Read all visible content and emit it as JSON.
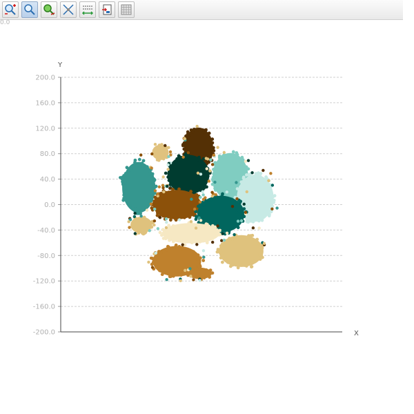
{
  "toolbar": {
    "buttons": [
      {
        "icon": "zoom-in-icon",
        "active": false
      },
      {
        "icon": "zoom-icon",
        "active": true
      },
      {
        "icon": "pan-icon",
        "active": false
      },
      {
        "icon": "select-icon",
        "active": false
      },
      {
        "icon": "axis-icon",
        "active": false
      },
      {
        "icon": "export-icon",
        "active": false
      },
      {
        "icon": "grid-icon",
        "active": false
      }
    ]
  },
  "status": {
    "text": "0.0"
  },
  "chart_data": {
    "type": "scatter",
    "xlabel": "X",
    "ylabel": "Y",
    "ylim": [
      -200,
      200
    ],
    "y_ticks": [
      "200.0",
      "160.0",
      "120.0",
      "80.0",
      "40.0",
      "0.0",
      "-40.0",
      "-80.0",
      "-120.0",
      "-160.0",
      "-200.0"
    ],
    "grid": true,
    "clusters": [
      {
        "color": "#543005",
        "cx": 3,
        "cy": 88,
        "rx": 23,
        "ry": 33
      },
      {
        "color": "#e0c27e",
        "cx": -57,
        "cy": 82,
        "rx": 13,
        "ry": 12
      },
      {
        "color": "#003c30",
        "cx": -13,
        "cy": 47,
        "rx": 33,
        "ry": 31
      },
      {
        "color": "#80cdc1",
        "cx": 53,
        "cy": 44,
        "rx": 28,
        "ry": 37
      },
      {
        "color": "#35978f",
        "cx": -91,
        "cy": 27,
        "rx": 26,
        "ry": 40
      },
      {
        "color": "#c7eae5",
        "cx": 92,
        "cy": 10,
        "rx": 29,
        "ry": 37
      },
      {
        "color": "#8c510a",
        "cx": -31,
        "cy": 0,
        "rx": 38,
        "ry": 23
      },
      {
        "color": "#01665e",
        "cx": 38,
        "cy": -15,
        "rx": 37,
        "ry": 29
      },
      {
        "color": "#dfc27d",
        "cx": -87,
        "cy": -32,
        "rx": 17,
        "ry": 13
      },
      {
        "color": "#f6e8c3",
        "cx": -9,
        "cy": -45,
        "rx": 45,
        "ry": 16
      },
      {
        "color": "#dfc27d",
        "cx": 70,
        "cy": -73,
        "rx": 35,
        "ry": 25
      },
      {
        "color": "#bf812d",
        "cx": -31,
        "cy": -89,
        "rx": 38,
        "ry": 24
      },
      {
        "color": "#bf812d",
        "cx": 5,
        "cy": -108,
        "rx": 19,
        "ry": 9
      }
    ]
  }
}
